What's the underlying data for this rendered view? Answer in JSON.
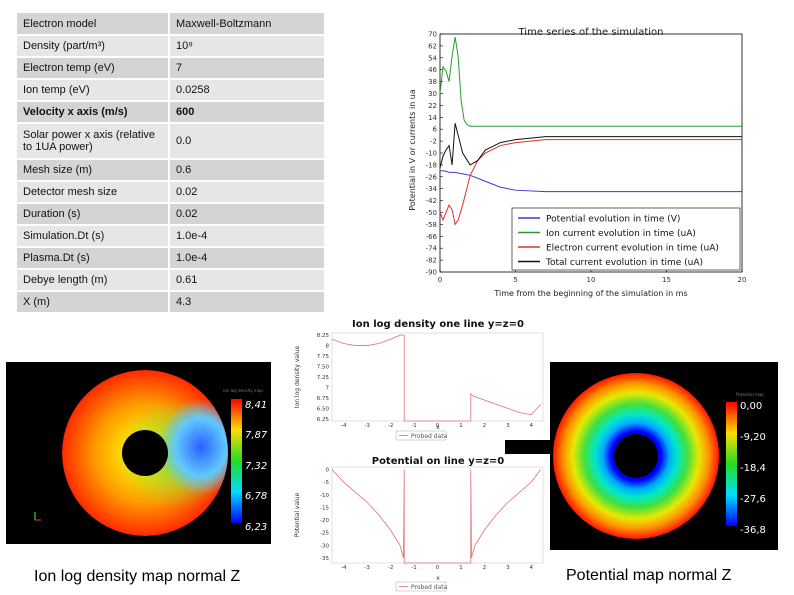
{
  "table": {
    "rows": [
      {
        "key": "Electron model",
        "value": "Maxwell-Boltzmann",
        "bold": false
      },
      {
        "key": "Density (part/m³)",
        "value": "10⁹",
        "bold": false
      },
      {
        "key": "Electron temp (eV)",
        "value": "7",
        "bold": false
      },
      {
        "key": "Ion temp (eV)",
        "value": "0.0258",
        "bold": false
      },
      {
        "key": "Velocity x axis (m/s)",
        "value": "600",
        "bold": true
      },
      {
        "key": "Solar power x axis (relative to 1UA power)",
        "value": "0.0",
        "bold": false
      },
      {
        "key": "Mesh size (m)",
        "value": "0.6",
        "bold": false
      },
      {
        "key": "Detector mesh size",
        "value": "0.02",
        "bold": false
      },
      {
        "key": "Duration (s)",
        "value": "0.02",
        "bold": false
      },
      {
        "key": "Simulation.Dt (s)",
        "value": "1.0e-4",
        "bold": false
      },
      {
        "key": "Plasma.Dt (s)",
        "value": "1.0e-4",
        "bold": false
      },
      {
        "key": "Debye length (m)",
        "value": "0.61",
        "bold": false
      },
      {
        "key": "X (m)",
        "value": "4.3",
        "bold": false
      }
    ]
  },
  "time_series": {
    "title": "Time series of the simulation",
    "ylabel": "Potential in V or currents in ua",
    "xlabel": "Time from the beginning of the simulation in ms",
    "colors": {
      "potential": "#3a3ad0",
      "ion": "#2e9a2e",
      "electron": "#e03030",
      "total": "#111111"
    }
  },
  "ion_line": {
    "title": "Ion log density one line y=z=0",
    "ylabel": "Ion log density value",
    "xlabel": "x",
    "legend": "Probed data"
  },
  "pot_line": {
    "title": "Potential on line y=z=0",
    "ylabel": "Potential value",
    "xlabel": "x",
    "legend": "Probed data"
  },
  "ion_map": {
    "colorbar_title": "ion log density map",
    "ticks": [
      "8,41",
      "7,87",
      "7,32",
      "6,78",
      "6,23"
    ]
  },
  "pot_map": {
    "colorbar_title": "Potential map",
    "ticks": [
      "0,00",
      "-9,20",
      "-18,4",
      "-27,6",
      "-36,8"
    ]
  },
  "captions": {
    "ion": "Ion log density map normal Z",
    "potential": "Potential map normal Z"
  },
  "chart_data": [
    {
      "type": "line",
      "title": "Time series of the simulation",
      "xlabel": "Time from the beginning of the simulation in ms",
      "ylabel": "Potential in V or currents in ua",
      "xlim": [
        0,
        20
      ],
      "ylim": [
        -90,
        70
      ],
      "xticks": [
        0,
        5,
        10,
        15,
        20
      ],
      "yticks": [
        70,
        62,
        54,
        46,
        38,
        30,
        22,
        14,
        6,
        -2,
        -10,
        -18,
        -26,
        -34,
        -42,
        -50,
        -58,
        -66,
        -74,
        -82,
        -90
      ],
      "legend_position": "lower-right",
      "series": [
        {
          "name": "Potential evolution in time (V)",
          "key": "potential",
          "x": [
            0,
            0.3,
            0.6,
            1,
            1.5,
            2,
            3,
            4,
            5,
            7,
            10,
            20
          ],
          "y": [
            -22,
            -22,
            -23,
            -23,
            -24,
            -25,
            -29,
            -33,
            -35,
            -36,
            -36,
            -36
          ]
        },
        {
          "name": "Ion current evolution in time (uA)",
          "key": "ion",
          "x": [
            0,
            0.2,
            0.4,
            0.6,
            0.8,
            1.0,
            1.2,
            1.4,
            1.6,
            1.8,
            2.0,
            2.5,
            3,
            5,
            20
          ],
          "y": [
            30,
            48,
            45,
            38,
            55,
            68,
            55,
            25,
            12,
            9,
            8,
            8,
            8,
            8,
            8
          ]
        },
        {
          "name": "Electron current evolution in time (uA)",
          "key": "electron",
          "x": [
            0,
            0.2,
            0.4,
            0.6,
            0.8,
            1.0,
            1.2,
            1.5,
            2,
            2.5,
            3,
            4,
            5,
            7,
            10,
            20
          ],
          "y": [
            -50,
            -55,
            -50,
            -45,
            -48,
            -58,
            -55,
            -45,
            -25,
            -15,
            -10,
            -5,
            -3,
            -1,
            -1,
            -1
          ]
        },
        {
          "name": "Total current evolution in time (uA)",
          "key": "total",
          "x": [
            0,
            0.2,
            0.4,
            0.6,
            0.8,
            1.0,
            1.2,
            1.5,
            2,
            2.5,
            3,
            4,
            5,
            7,
            20
          ],
          "y": [
            -20,
            -12,
            -8,
            -5,
            -18,
            10,
            2,
            -10,
            -18,
            -15,
            -8,
            -3,
            -1,
            1,
            1
          ]
        }
      ]
    },
    {
      "type": "line",
      "title": "Ion log density one line y=z=0",
      "xlabel": "x",
      "ylabel": "Ion log density value",
      "xlim": [
        -4.5,
        4.5
      ],
      "ylim": [
        6.2,
        8.3
      ],
      "xticks": [
        -4,
        -3,
        -2,
        -1,
        0,
        1,
        2,
        3,
        4
      ],
      "yticks": [
        8.25,
        8.0,
        7.75,
        7.5,
        7.25,
        7.0,
        6.75,
        6.5,
        6.25
      ],
      "series": [
        {
          "name": "Probed data",
          "x": [
            -4.5,
            -4,
            -3.5,
            -3,
            -2.5,
            -2,
            -1.6,
            -1.45,
            -1.42,
            -1.42,
            1.42,
            1.42,
            1.5,
            2,
            2.5,
            3,
            3.5,
            4,
            4.4
          ],
          "y": [
            8.15,
            8.05,
            8.0,
            8.0,
            8.05,
            8.15,
            8.25,
            8.25,
            8.25,
            6.2,
            6.2,
            6.85,
            6.8,
            6.7,
            6.6,
            6.5,
            6.4,
            6.35,
            6.6
          ]
        }
      ]
    },
    {
      "type": "line",
      "title": "Potential on line y=z=0",
      "xlabel": "x",
      "ylabel": "Potential value",
      "xlim": [
        -4.5,
        4.5
      ],
      "ylim": [
        -37,
        1
      ],
      "xticks": [
        -4,
        -3,
        -2,
        -1,
        0,
        1,
        2,
        3,
        4
      ],
      "yticks": [
        0,
        -5,
        -10,
        -15,
        -20,
        -25,
        -30,
        -35
      ],
      "series": [
        {
          "name": "Probed data",
          "x": [
            -4.5,
            -4,
            -3.5,
            -3,
            -2.5,
            -2,
            -1.6,
            -1.45,
            -1.45,
            -1.42,
            -1.42,
            1.42,
            1.42,
            1.45,
            1.45,
            1.6,
            2,
            2.5,
            3,
            3.5,
            4,
            4.4
          ],
          "y": [
            0,
            -5,
            -9,
            -13,
            -18,
            -24,
            -30,
            -35,
            -35,
            0,
            -37,
            -37,
            0,
            -35,
            -35,
            -30,
            -24,
            -18,
            -13,
            -9,
            -5,
            0
          ]
        }
      ]
    }
  ]
}
